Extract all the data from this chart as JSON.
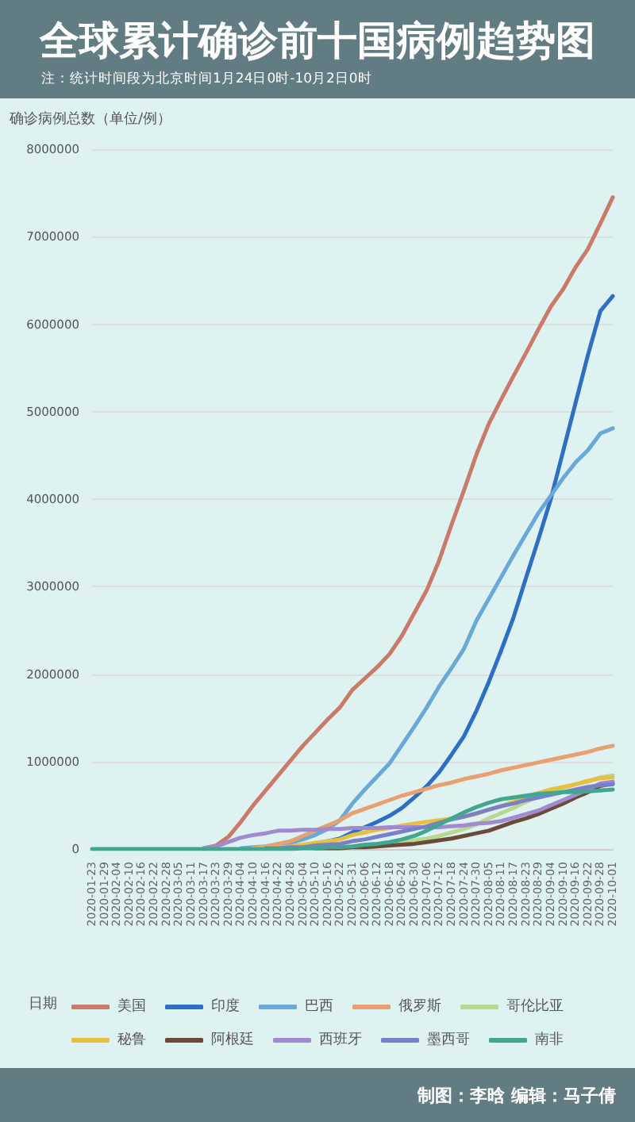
{
  "chart_data": {
    "type": "line",
    "title": "全球累计确诊前十国病例趋势图",
    "subtitle": "注：统计时间段为北京时间1月24日0时-10月2日0时",
    "xlabel": "日期",
    "ylabel": "确诊病例总数（单位/例）",
    "categories": [
      "2020-01-23",
      "2020-01-29",
      "2020-02-04",
      "2020-02-10",
      "2020-02-16",
      "2020-02-22",
      "2020-02-28",
      "2020-03-05",
      "2020-03-11",
      "2020-03-17",
      "2020-03-23",
      "2020-03-29",
      "2020-04-04",
      "2020-04-10",
      "2020-04-16",
      "2020-04-22",
      "2020-04-28",
      "2020-05-04",
      "2020-05-10",
      "2020-05-16",
      "2020-05-22",
      "2020-05-31",
      "2020-06-06",
      "2020-06-12",
      "2020-06-18",
      "2020-06-24",
      "2020-06-30",
      "2020-07-06",
      "2020-07-12",
      "2020-07-18",
      "2020-07-24",
      "2020-07-30",
      "2020-08-05",
      "2020-08-11",
      "2020-08-17",
      "2020-08-23",
      "2020-08-29",
      "2020-09-04",
      "2020-09-10",
      "2020-09-16",
      "2020-09-22",
      "2020-09-28",
      "2020-10-01"
    ],
    "series": [
      {
        "name": "美国",
        "color": "#c97a68",
        "values": [
          null,
          null,
          null,
          null,
          null,
          null,
          null,
          null,
          null,
          10000,
          40000,
          140000,
          310000,
          500000,
          670000,
          840000,
          1010000,
          1180000,
          1330000,
          1480000,
          1620000,
          1820000,
          1950000,
          2080000,
          2230000,
          2440000,
          2700000,
          2960000,
          3300000,
          3710000,
          4100000,
          4510000,
          4860000,
          5140000,
          5410000,
          5670000,
          5940000,
          6200000,
          6400000,
          6650000,
          6860000,
          7150000,
          7450000
        ]
      },
      {
        "name": "印度",
        "color": "#2e6fc4",
        "values": [
          null,
          null,
          null,
          null,
          null,
          null,
          null,
          null,
          null,
          null,
          null,
          null,
          null,
          10000,
          10000,
          20000,
          30000,
          40000,
          60000,
          90000,
          120000,
          190000,
          250000,
          310000,
          380000,
          470000,
          590000,
          720000,
          880000,
          1080000,
          1290000,
          1580000,
          1910000,
          2270000,
          2650000,
          3100000,
          3540000,
          4000000,
          4550000,
          5100000,
          5650000,
          6150000,
          6320000
        ]
      },
      {
        "name": "巴西",
        "color": "#6aa8d8",
        "values": [
          null,
          null,
          null,
          null,
          null,
          null,
          null,
          null,
          null,
          null,
          null,
          null,
          10000,
          20000,
          30000,
          50000,
          70000,
          110000,
          160000,
          230000,
          330000,
          520000,
          680000,
          830000,
          980000,
          1190000,
          1400000,
          1620000,
          1860000,
          2070000,
          2290000,
          2610000,
          2860000,
          3110000,
          3360000,
          3600000,
          3840000,
          4040000,
          4240000,
          4420000,
          4560000,
          4750000,
          4810000
        ]
      },
      {
        "name": "俄罗斯",
        "color": "#e8a070",
        "values": [
          null,
          null,
          null,
          null,
          null,
          null,
          null,
          null,
          null,
          null,
          null,
          null,
          null,
          10000,
          30000,
          60000,
          90000,
          150000,
          210000,
          270000,
          330000,
          410000,
          460000,
          510000,
          560000,
          610000,
          650000,
          690000,
          730000,
          760000,
          800000,
          830000,
          860000,
          900000,
          930000,
          960000,
          990000,
          1020000,
          1050000,
          1080000,
          1110000,
          1150000,
          1180000
        ]
      },
      {
        "name": "哥伦比亚",
        "color": "#b8d890",
        "values": [
          null,
          null,
          null,
          null,
          null,
          null,
          null,
          null,
          null,
          null,
          null,
          null,
          null,
          null,
          null,
          null,
          10000,
          10000,
          10000,
          20000,
          20000,
          30000,
          40000,
          50000,
          60000,
          80000,
          100000,
          120000,
          150000,
          190000,
          230000,
          280000,
          350000,
          410000,
          470000,
          540000,
          600000,
          650000,
          700000,
          740000,
          770000,
          820000,
          840000
        ]
      },
      {
        "name": "秘鲁",
        "color": "#e8c040",
        "values": [
          null,
          null,
          null,
          null,
          null,
          null,
          null,
          null,
          null,
          null,
          null,
          null,
          null,
          10000,
          10000,
          20000,
          30000,
          50000,
          70000,
          90000,
          110000,
          160000,
          190000,
          220000,
          240000,
          270000,
          290000,
          310000,
          330000,
          350000,
          370000,
          400000,
          450000,
          490000,
          540000,
          600000,
          640000,
          680000,
          710000,
          740000,
          780000,
          810000,
          820000
        ]
      },
      {
        "name": "阿根廷",
        "color": "#6b4a3a",
        "values": [
          null,
          null,
          null,
          null,
          null,
          null,
          null,
          null,
          null,
          null,
          null,
          null,
          null,
          null,
          null,
          null,
          null,
          null,
          10000,
          10000,
          10000,
          20000,
          20000,
          30000,
          40000,
          50000,
          60000,
          80000,
          100000,
          120000,
          150000,
          180000,
          210000,
          260000,
          310000,
          350000,
          400000,
          460000,
          520000,
          590000,
          650000,
          720000,
          750000
        ]
      },
      {
        "name": "西班牙",
        "color": "#a08ad0",
        "values": [
          null,
          null,
          null,
          null,
          null,
          null,
          null,
          null,
          null,
          10000,
          30000,
          80000,
          130000,
          160000,
          180000,
          210000,
          210000,
          220000,
          220000,
          230000,
          230000,
          240000,
          240000,
          240000,
          250000,
          250000,
          250000,
          250000,
          250000,
          260000,
          270000,
          290000,
          300000,
          320000,
          360000,
          400000,
          440000,
          500000,
          560000,
          620000,
          680000,
          750000,
          770000
        ]
      },
      {
        "name": "墨西哥",
        "color": "#7a80c8",
        "values": [
          null,
          null,
          null,
          null,
          null,
          null,
          null,
          null,
          null,
          null,
          null,
          null,
          null,
          null,
          10000,
          10000,
          20000,
          20000,
          40000,
          50000,
          60000,
          90000,
          110000,
          140000,
          170000,
          200000,
          230000,
          260000,
          300000,
          340000,
          370000,
          410000,
          450000,
          490000,
          520000,
          560000,
          590000,
          620000,
          650000,
          680000,
          710000,
          730000,
          740000
        ]
      },
      {
        "name": "南非",
        "color": "#40a890",
        "values": [
          0,
          0,
          0,
          0,
          0,
          0,
          0,
          0,
          0,
          0,
          0,
          0,
          0,
          0,
          0,
          0,
          0,
          10000,
          10000,
          20000,
          20000,
          30000,
          50000,
          60000,
          80000,
          110000,
          150000,
          210000,
          280000,
          350000,
          420000,
          480000,
          530000,
          570000,
          590000,
          610000,
          630000,
          640000,
          650000,
          650000,
          660000,
          670000,
          680000
        ]
      }
    ],
    "ylim": [
      0,
      8000000
    ],
    "yticks": [
      0,
      {
        "value": 1000000,
        "label": "1000000"
      },
      {
        "value": 2000000,
        "label": "2000000"
      },
      {
        "value": 3000000,
        "label": "3000000"
      },
      {
        "value": 4000000,
        "label": "4000000"
      },
      {
        "value": 5000000,
        "label": "5000000"
      },
      {
        "value": 6000000,
        "label": "6000000"
      },
      {
        "value": 7000000,
        "label": "7000000"
      },
      {
        "value": 8000000,
        "label": "8000000"
      }
    ],
    "grid": "y",
    "legend": "bottom",
    "marker": "none",
    "line_style": "solid",
    "annotations": [
      "制图：李晗 编辑：马子倩"
    ]
  }
}
